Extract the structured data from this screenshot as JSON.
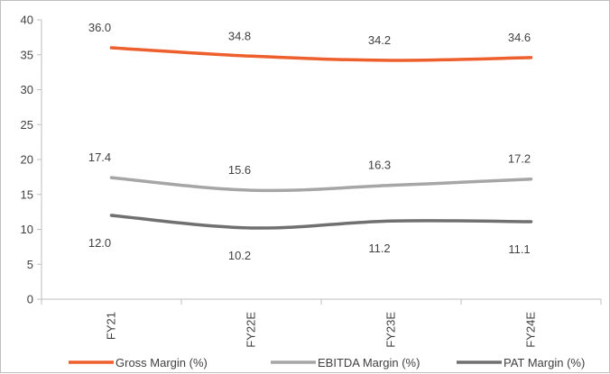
{
  "chart_data": {
    "type": "line",
    "title": "",
    "xlabel": "",
    "ylabel": "",
    "categories": [
      "FY21",
      "FY22E",
      "FY23E",
      "FY24E"
    ],
    "ylim": [
      0,
      40
    ],
    "yticks": [
      0,
      5,
      10,
      15,
      20,
      25,
      30,
      35,
      40
    ],
    "grid": false,
    "legend_position": "bottom",
    "series": [
      {
        "name": "Gross Margin (%)",
        "color": "#ed5f2c",
        "values": [
          36.0,
          34.8,
          34.2,
          34.6
        ],
        "labels": [
          "36.0",
          "34.8",
          "34.2",
          "34.6"
        ],
        "label_position": "above"
      },
      {
        "name": "EBITDA Margin (%)",
        "color": "#a6a6a6",
        "values": [
          17.4,
          15.6,
          16.3,
          17.2
        ],
        "labels": [
          "17.4",
          "15.6",
          "16.3",
          "17.2"
        ],
        "label_position": "above"
      },
      {
        "name": "PAT Margin (%)",
        "color": "#707070",
        "values": [
          12.0,
          10.2,
          11.2,
          11.1
        ],
        "labels": [
          "12.0",
          "10.2",
          "11.2",
          "11.1"
        ],
        "label_position": "below"
      }
    ]
  }
}
